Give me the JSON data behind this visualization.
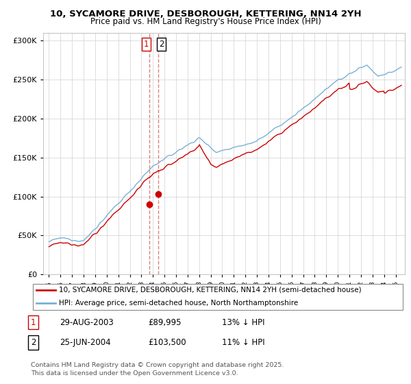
{
  "title_line1": "10, SYCAMORE DRIVE, DESBOROUGH, KETTERING, NN14 2YH",
  "title_line2": "Price paid vs. HM Land Registry's House Price Index (HPI)",
  "legend_label_red": "10, SYCAMORE DRIVE, DESBOROUGH, KETTERING, NN14 2YH (semi-detached house)",
  "legend_label_blue": "HPI: Average price, semi-detached house, North Northamptonshire",
  "transaction1_date": "29-AUG-2003",
  "transaction1_price": "£89,995",
  "transaction1_hpi": "13% ↓ HPI",
  "transaction1_year": 2003.66,
  "transaction1_price_val": 89995,
  "transaction2_date": "25-JUN-2004",
  "transaction2_price": "£103,500",
  "transaction2_hpi": "11% ↓ HPI",
  "transaction2_year": 2004.48,
  "transaction2_price_val": 103500,
  "footer": "Contains HM Land Registry data © Crown copyright and database right 2025.\nThis data is licensed under the Open Government Licence v3.0.",
  "red_color": "#cc0000",
  "blue_color": "#7ab0d4",
  "dashed_color": "#e08080",
  "ylim_min": 0,
  "ylim_max": 310000,
  "xlim_min": 1994.5,
  "xlim_max": 2025.8
}
